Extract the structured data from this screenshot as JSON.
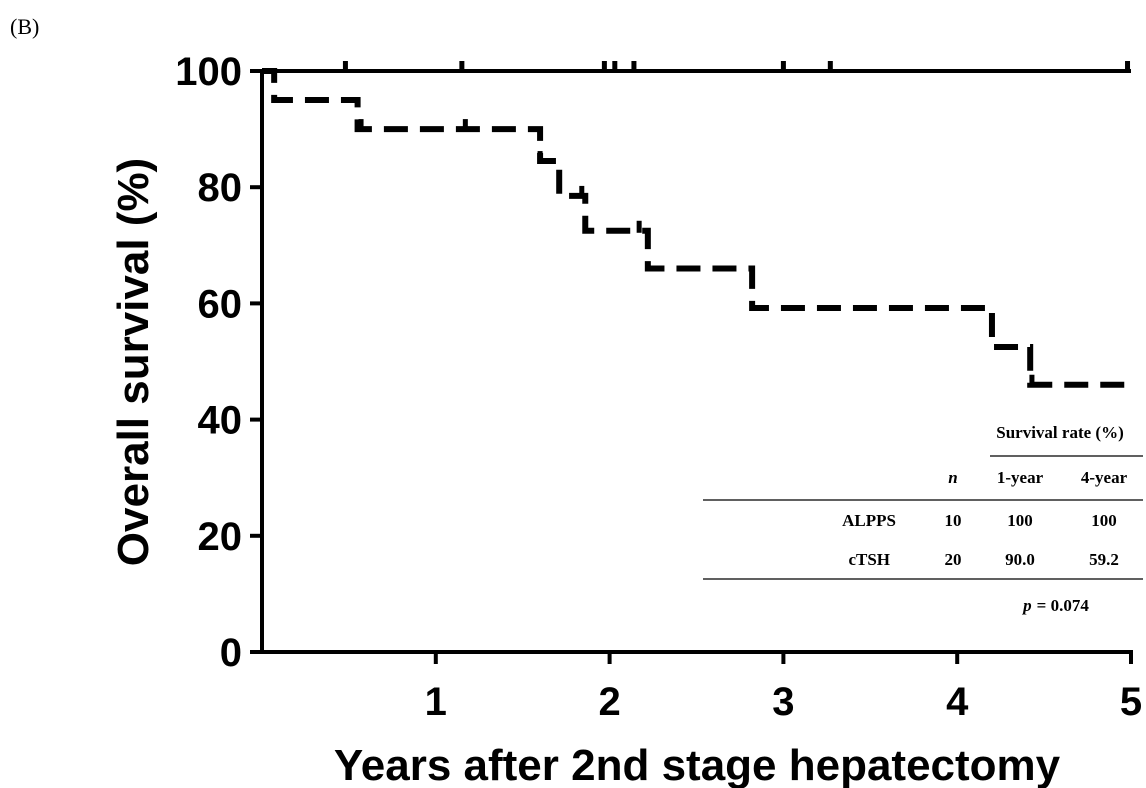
{
  "panel_label": "(B)",
  "chart_data": {
    "type": "line",
    "subtype": "kaplan-meier",
    "xlabel": "Years after 2nd stage hepatectomy",
    "ylabel": "Overall survival (%)",
    "xlim": [
      0,
      5
    ],
    "ylim": [
      0,
      100
    ],
    "x_ticks": [
      1,
      2,
      3,
      4,
      5
    ],
    "y_ticks": [
      0,
      20,
      40,
      60,
      80,
      100
    ],
    "x_tick_labels": [
      "1",
      "2",
      "3",
      "4",
      "5"
    ],
    "y_tick_labels": [
      "0",
      "20",
      "40",
      "60",
      "80",
      "100"
    ],
    "series": [
      {
        "style": "solid",
        "color": "#000000",
        "steps": [
          [
            0,
            100
          ],
          [
            5,
            100
          ]
        ],
        "censor_x": [
          0.48,
          1.15,
          1.97,
          2.03,
          2.14,
          3.0,
          3.27,
          4.98
        ]
      },
      {
        "style": "dashed",
        "color": "#000000",
        "steps": [
          [
            0,
            100
          ],
          [
            0.07,
            95
          ],
          [
            0.55,
            90
          ],
          [
            1.6,
            84.5
          ],
          [
            1.71,
            78.5
          ],
          [
            1.86,
            72.5
          ],
          [
            2.22,
            66
          ],
          [
            2.82,
            59.2
          ],
          [
            4.2,
            52.5
          ],
          [
            4.42,
            46
          ],
          [
            5,
            46
          ]
        ],
        "censor_x": [
          0.57,
          1.17,
          1.6,
          1.84,
          2.17,
          4.43
        ]
      }
    ]
  },
  "table": {
    "header_group": "Survival rate (%)",
    "col_headers": [
      "n",
      "1-year",
      "4-year"
    ],
    "rows": [
      {
        "label": "ALPPS",
        "n": "10",
        "y1": "100",
        "y4": "100"
      },
      {
        "label": "cTSH",
        "n": "20",
        "y1": "90.0",
        "y4": "59.2"
      }
    ],
    "p_label": "p",
    "p_value": "= 0.074"
  }
}
